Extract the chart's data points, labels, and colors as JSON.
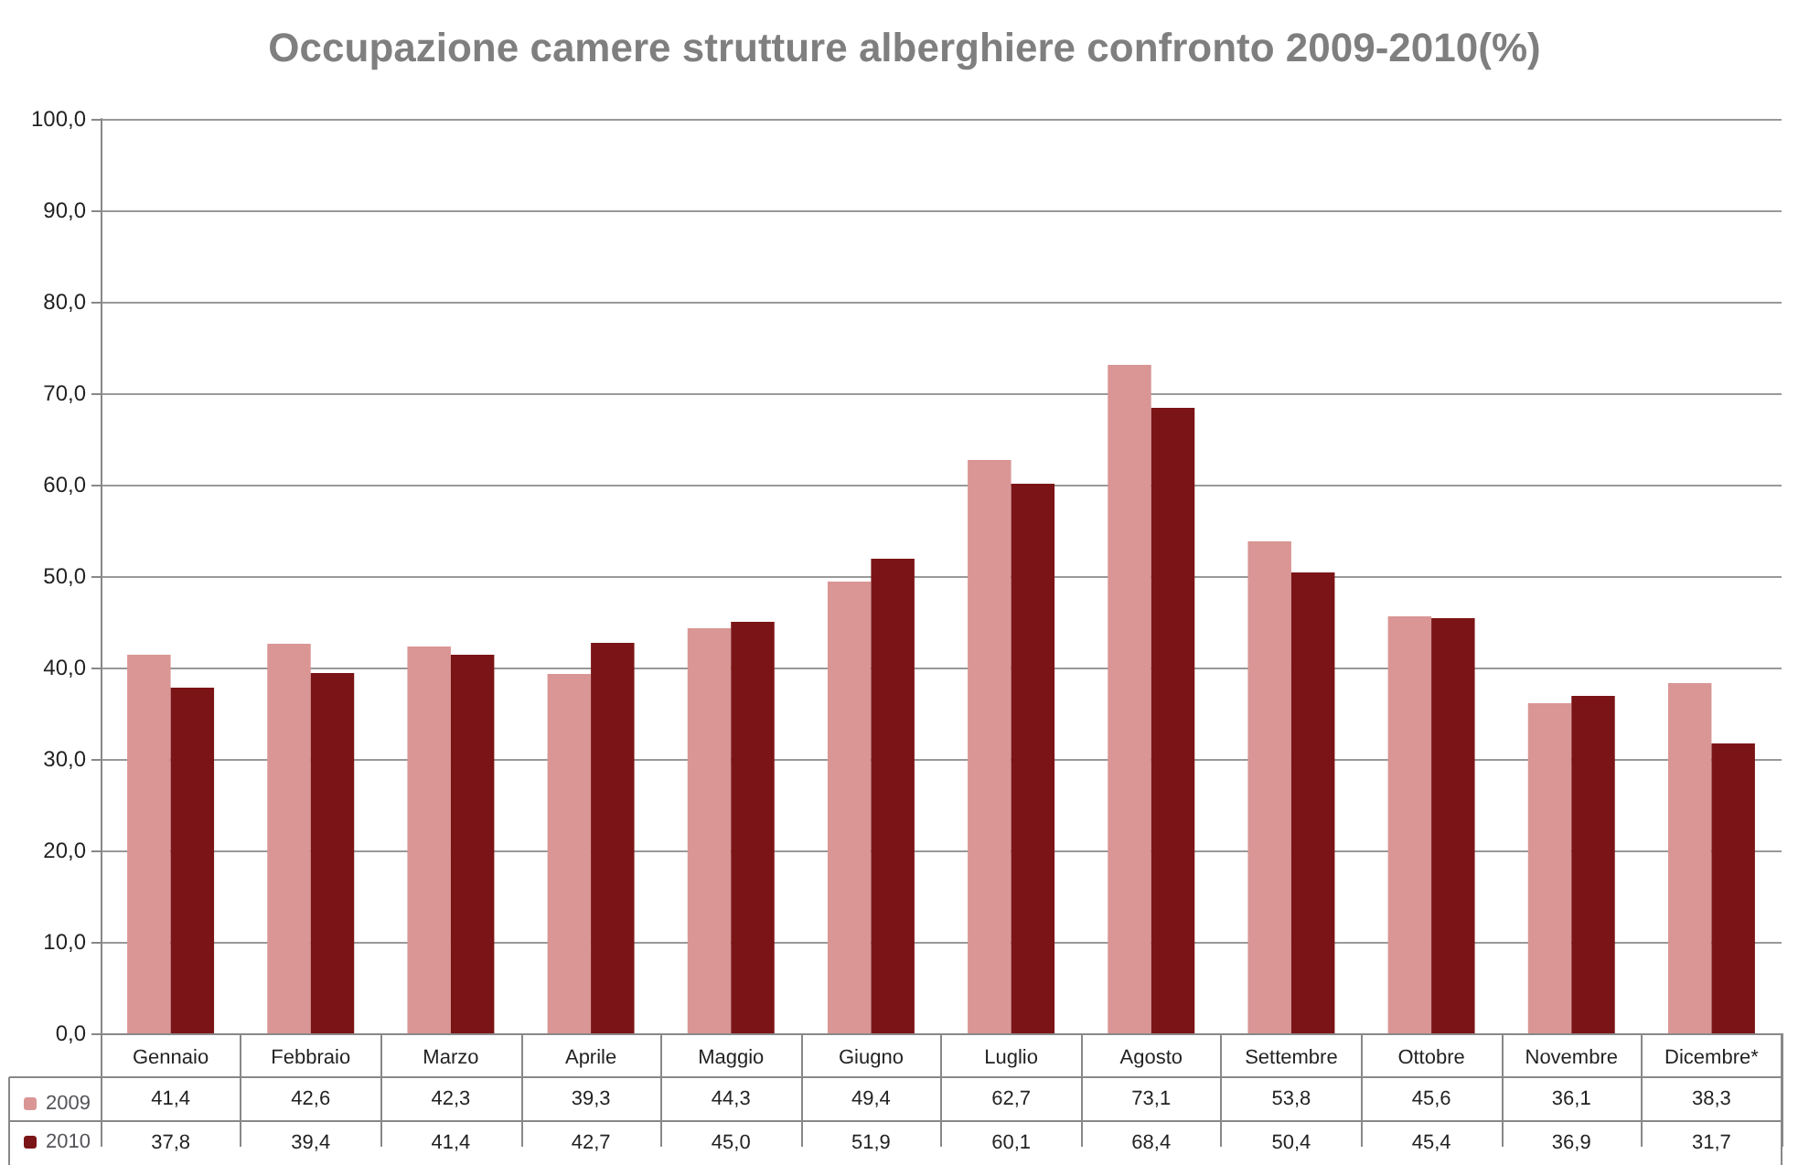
{
  "chart_data": {
    "type": "bar",
    "title": "Occupazione camere strutture alberghiere confronto 2009-2010(%)",
    "categories": [
      "Gennaio",
      "Febbraio",
      "Marzo",
      "Aprile",
      "Maggio",
      "Giugno",
      "Luglio",
      "Agosto",
      "Settembre",
      "Ottobre",
      "Novembre",
      "Dicembre*"
    ],
    "series": [
      {
        "name": "2009",
        "color": "#d99694",
        "values": [
          41.4,
          42.6,
          42.3,
          39.3,
          44.3,
          49.4,
          62.7,
          73.1,
          53.8,
          45.6,
          36.1,
          38.3
        ],
        "value_labels": [
          "41,4",
          "42,6",
          "42,3",
          "39,3",
          "44,3",
          "49,4",
          "62,7",
          "73,1",
          "53,8",
          "45,6",
          "36,1",
          "38,3"
        ]
      },
      {
        "name": "2010",
        "color": "#7b1416",
        "values": [
          37.8,
          39.4,
          41.4,
          42.7,
          45.0,
          51.9,
          60.1,
          68.4,
          50.4,
          45.4,
          36.9,
          31.7
        ],
        "value_labels": [
          "37,8",
          "39,4",
          "41,4",
          "42,7",
          "45,0",
          "51,9",
          "60,1",
          "68,4",
          "50,4",
          "45,4",
          "36,9",
          "31,7"
        ]
      }
    ],
    "ylim": [
      0,
      100
    ],
    "yticks": [
      {
        "value": 0,
        "label": "0,0"
      },
      {
        "value": 10,
        "label": "10,0"
      },
      {
        "value": 20,
        "label": "20,0"
      },
      {
        "value": 30,
        "label": "30,0"
      },
      {
        "value": 40,
        "label": "40,0"
      },
      {
        "value": 50,
        "label": "50,0"
      },
      {
        "value": 60,
        "label": "60,0"
      },
      {
        "value": 70,
        "label": "70,0"
      },
      {
        "value": 80,
        "label": "80,0"
      },
      {
        "value": 90,
        "label": "90,0"
      },
      {
        "value": 100,
        "label": "100,0"
      }
    ],
    "grid": "y",
    "legend": "bottom left"
  }
}
